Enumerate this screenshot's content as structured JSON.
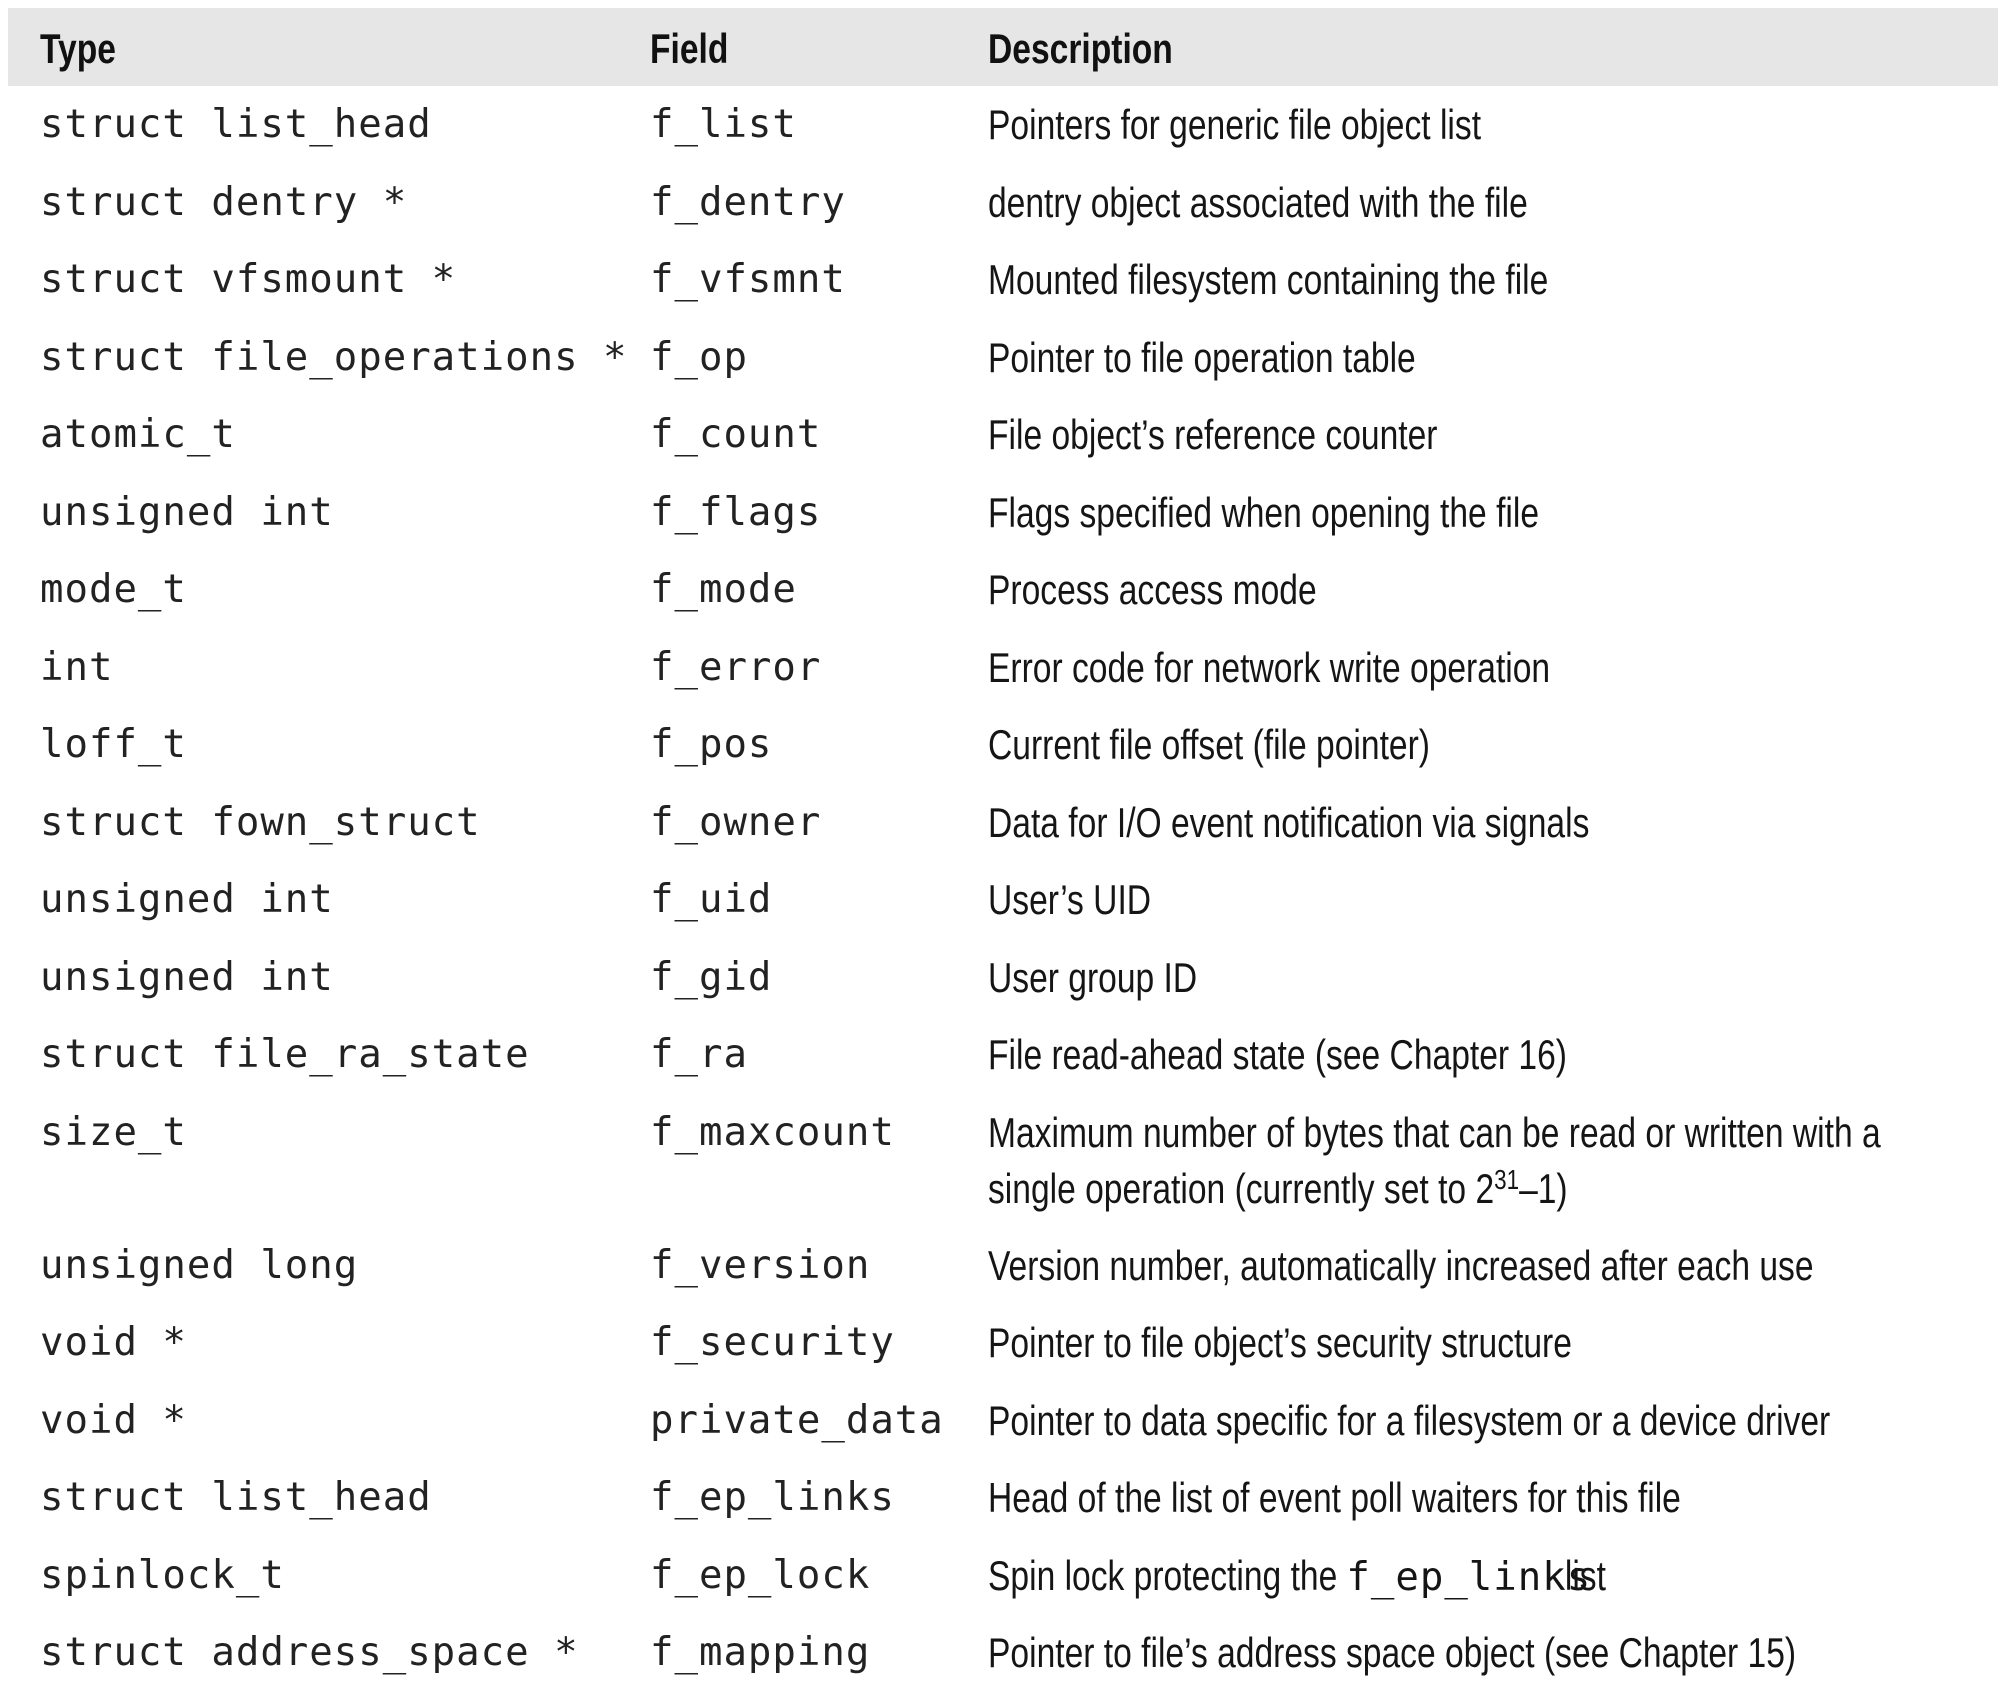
{
  "table": {
    "headers": {
      "type": "Type",
      "field": "Field",
      "description": "Description"
    },
    "rows": [
      {
        "type": "struct list_head",
        "field": "f_list",
        "description": "Pointers for generic file object list"
      },
      {
        "type": "struct dentry *",
        "field": "f_dentry",
        "description": "dentry object associated with the file"
      },
      {
        "type": "struct vfsmount *",
        "field": "f_vfsmnt",
        "description": "Mounted filesystem containing the file"
      },
      {
        "type": "struct file_operations *",
        "field": "f_op",
        "description": "Pointer to file operation table"
      },
      {
        "type": "atomic_t",
        "field": "f_count",
        "description": "File object’s reference counter"
      },
      {
        "type": "unsigned int",
        "field": "f_flags",
        "description": "Flags specified when opening the file"
      },
      {
        "type": "mode_t",
        "field": "f_mode",
        "description": "Process access mode"
      },
      {
        "type": "int",
        "field": "f_error",
        "description": "Error code for network write operation"
      },
      {
        "type": "loff_t",
        "field": "f_pos",
        "description": "Current file offset (file pointer)"
      },
      {
        "type": "struct fown_struct",
        "field": "f_owner",
        "description": "Data for I/O event notification via signals"
      },
      {
        "type": "unsigned int",
        "field": "f_uid",
        "description": "User’s UID"
      },
      {
        "type": "unsigned int",
        "field": "f_gid",
        "description": "User group ID"
      },
      {
        "type": "struct file_ra_state",
        "field": "f_ra",
        "description": "File read-ahead state (see Chapter 16)"
      },
      {
        "type": "size_t",
        "field": "f_maxcount",
        "description": "Maximum number of bytes that can be read or written with a",
        "description_line2": "single operation (currently set to 2",
        "description_sup": "31",
        "description_tail": "–1)"
      },
      {
        "type": "unsigned long",
        "field": "f_version",
        "description": "Version number, automatically increased after each use"
      },
      {
        "type": "void *",
        "field": "f_security",
        "description": "Pointer to file object’s security structure"
      },
      {
        "type": "void *",
        "field": "private_data",
        "description": "Pointer to data specific for a filesystem or a device driver"
      },
      {
        "type": "struct list_head",
        "field": "f_ep_links",
        "description": "Head of the list of event poll waiters for this file"
      },
      {
        "type": "spinlock_t",
        "field": "f_ep_lock",
        "description": "Spin lock protecting the",
        "description_code": "f_ep_links",
        "description_tail": "list"
      },
      {
        "type": "struct address_space *",
        "field": "f_mapping",
        "description": "Pointer to file’s address space object (see Chapter 15)"
      }
    ]
  }
}
